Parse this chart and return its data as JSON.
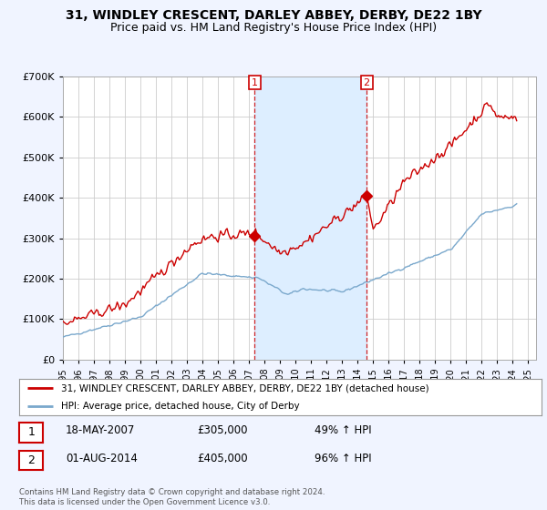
{
  "title": "31, WINDLEY CRESCENT, DARLEY ABBEY, DERBY, DE22 1BY",
  "subtitle": "Price paid vs. HM Land Registry's House Price Index (HPI)",
  "title_fontsize": 10,
  "subtitle_fontsize": 9,
  "ylim": [
    0,
    700000
  ],
  "xlim_start": 1995.0,
  "xlim_end": 2025.5,
  "background_color": "#f0f4ff",
  "plot_bg_color": "#ffffff",
  "shade_color": "#ddeeff",
  "grid_color": "#cccccc",
  "red_line_color": "#cc0000",
  "blue_line_color": "#7aa8cc",
  "legend_label_red": "31, WINDLEY CRESCENT, DARLEY ABBEY, DERBY, DE22 1BY (detached house)",
  "legend_label_blue": "HPI: Average price, detached house, City of Derby",
  "sale1_date": 2007.37,
  "sale1_price": 305000,
  "sale2_date": 2014.58,
  "sale2_price": 405000,
  "footer_text": "Contains HM Land Registry data © Crown copyright and database right 2024.\nThis data is licensed under the Open Government Licence v3.0.",
  "annotation_box1": {
    "label": "1",
    "date_str": "18-MAY-2007",
    "price_str": "£305,000",
    "pct_str": "49% ↑ HPI"
  },
  "annotation_box2": {
    "label": "2",
    "date_str": "01-AUG-2014",
    "price_str": "£405,000",
    "pct_str": "96% ↑ HPI"
  }
}
